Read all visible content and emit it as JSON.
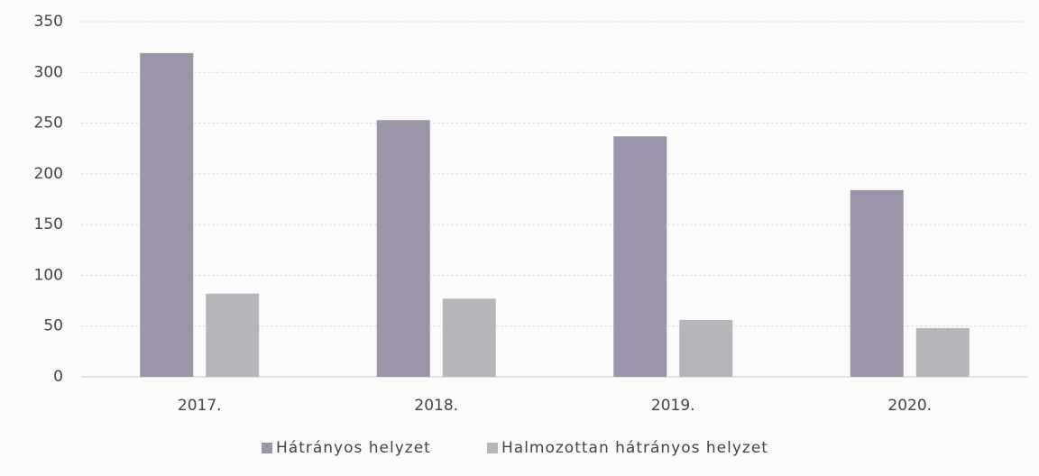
{
  "chart_data": {
    "type": "bar",
    "categories": [
      "2017.",
      "2018.",
      "2019.",
      "2020."
    ],
    "series": [
      {
        "name": "Hátrányos helyzet",
        "color": "#9c95a9",
        "values": [
          319,
          253,
          237,
          184
        ]
      },
      {
        "name": "Halmozottan hátrányos helyzet",
        "color": "#b5b5ba",
        "values": [
          82,
          77,
          56,
          48
        ]
      }
    ],
    "ylim": [
      0,
      350
    ],
    "yticks": [
      0,
      50,
      100,
      150,
      200,
      250,
      300,
      350
    ],
    "grid": true,
    "legend": "bottom"
  }
}
